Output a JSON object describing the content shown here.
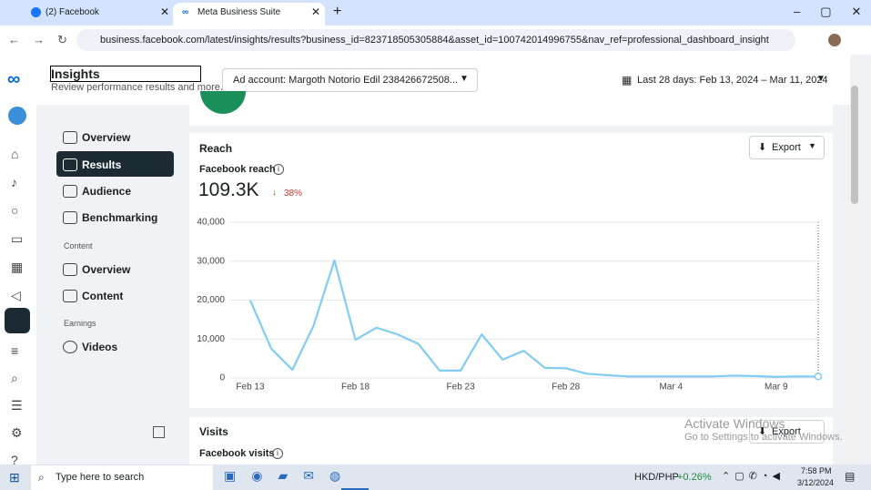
{
  "browser": {
    "tabs": [
      "(2) Facebook",
      "Meta Business Suite"
    ],
    "url": "business.facebook.com/latest/insights/results?business_id=823718505305884&asset_id=100742014996755&nav_ref=professional_dashboard_insights_home_mbs_upsel..."
  },
  "header": {
    "title": "Insights",
    "subtitle": "Review performance results and more.",
    "ad_account": "Ad account: Margoth Notorio Edil 238426672508...",
    "date_range": "Last 28 days: Feb 13, 2024 – Mar 11, 2024"
  },
  "nav": {
    "items": [
      "Overview",
      "Results",
      "Audience",
      "Benchmarking"
    ],
    "content_heading": "Content",
    "content_items": [
      "Overview",
      "Content"
    ],
    "earnings_heading": "Earnings",
    "earnings_items": [
      "Videos"
    ]
  },
  "reach_card": {
    "title": "Reach",
    "export": "Export",
    "metric": "Facebook reach",
    "total": "109.3K",
    "change": "38%"
  },
  "chart_data": {
    "type": "line",
    "categories": [
      "Feb 13",
      null,
      null,
      null,
      null,
      "Feb 18",
      null,
      null,
      null,
      null,
      "Feb 23",
      null,
      null,
      null,
      null,
      "Feb 28",
      null,
      null,
      null,
      null,
      "Mar 4",
      null,
      null,
      null,
      null,
      "Mar 9",
      null,
      null
    ],
    "series": [
      {
        "name": "Facebook reach",
        "color": "#80ccf2",
        "values": [
          19900,
          7500,
          2100,
          13300,
          30200,
          9800,
          12900,
          11200,
          8700,
          1900,
          1900,
          11200,
          4700,
          7000,
          2600,
          2500,
          1100,
          700,
          400,
          400,
          400,
          400,
          400,
          600,
          500,
          300,
          400,
          400
        ]
      }
    ],
    "ylim": [
      0,
      40000
    ],
    "yticks": [
      0,
      {
        "value": 10000,
        "label": "10,000"
      },
      {
        "value": 20000,
        "label": "20,000"
      },
      {
        "value": 30000,
        "label": "30,000"
      },
      {
        "value": 40000,
        "label": "40,000"
      }
    ],
    "grid": true
  },
  "visits_card": {
    "title": "Visits",
    "export": "Export",
    "metric": "Facebook visits"
  },
  "watermark": {
    "title": "Activate Windows",
    "subtitle": "Go to Settings to activate Windows."
  },
  "taskbar": {
    "search": "Type here to search",
    "ticker": "HKD/PHP",
    "ticker_change": "+0.26%",
    "time": "7:58 PM",
    "date": "3/12/2024"
  }
}
